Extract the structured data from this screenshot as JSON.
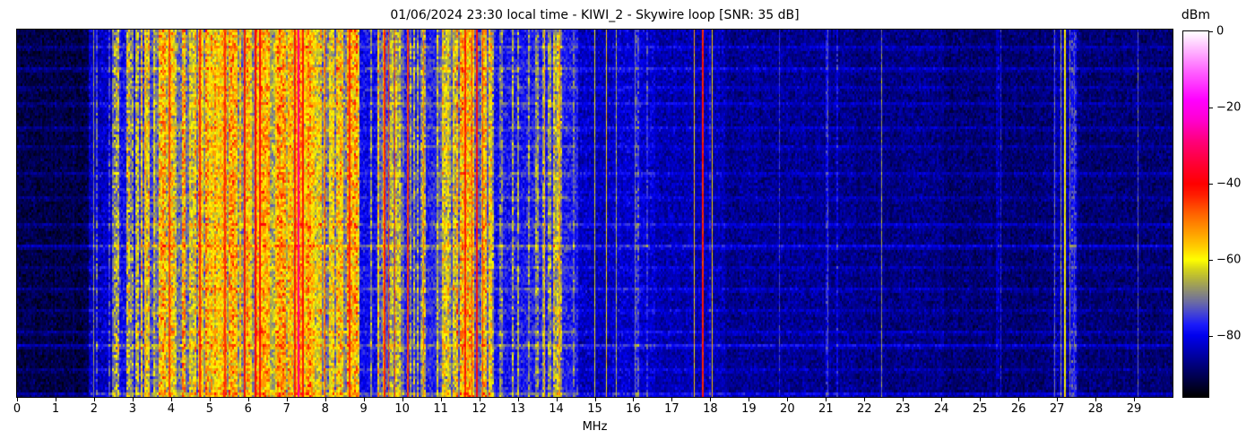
{
  "title": "01/06/2024 23:30 local time - KIWI_2 - Skywire loop [SNR: 35 dB]",
  "station": {
    "datetime": "01/06/2024 23:30 local time",
    "receiver": "KIWI_2",
    "antenna": "Skywire loop",
    "snr_db": 35
  },
  "x_axis": {
    "label": "MHz",
    "ticks": [
      "0",
      "1",
      "2",
      "3",
      "4",
      "5",
      "6",
      "7",
      "8",
      "9",
      "10",
      "11",
      "12",
      "13",
      "14",
      "15",
      "16",
      "17",
      "18",
      "19",
      "20",
      "21",
      "22",
      "23",
      "24",
      "25",
      "26",
      "27",
      "28",
      "29"
    ],
    "tick_values": [
      0,
      1,
      2,
      3,
      4,
      5,
      6,
      7,
      8,
      9,
      10,
      11,
      12,
      13,
      14,
      15,
      16,
      17,
      18,
      19,
      20,
      21,
      22,
      23,
      24,
      25,
      26,
      27,
      28,
      29
    ],
    "range_mhz": [
      0,
      30
    ]
  },
  "colorbar": {
    "label": "dBm",
    "ticks": [
      "0",
      "−20",
      "−40",
      "−60",
      "−80"
    ],
    "tick_values": [
      0,
      -20,
      -40,
      -60,
      -80
    ],
    "range": [
      0,
      -96
    ]
  },
  "chart_data": {
    "type": "heatmap",
    "title": "01/06/2024 23:30 local time - KIWI_2 - Skywire loop [SNR: 35 dB]",
    "xlabel": "MHz",
    "x_range_mhz": [
      0,
      30
    ],
    "value_unit": "dBm",
    "value_range": [
      -96,
      0
    ],
    "legend_position": "right-colorbar",
    "grid": false,
    "colormap": [
      [
        -96,
        "#000000"
      ],
      [
        -92,
        "#00003e"
      ],
      [
        -88,
        "#000078"
      ],
      [
        -84,
        "#0000b4"
      ],
      [
        -80,
        "#0000ee"
      ],
      [
        -77,
        "#1c1cfa"
      ],
      [
        -74,
        "#4646d2"
      ],
      [
        -71,
        "#6e6ea0"
      ],
      [
        -68,
        "#90906e"
      ],
      [
        -65,
        "#b4b43c"
      ],
      [
        -62,
        "#dcdc14"
      ],
      [
        -60,
        "#ffff00"
      ],
      [
        -57,
        "#ffd200"
      ],
      [
        -53,
        "#ffa000"
      ],
      [
        -48,
        "#ff6400"
      ],
      [
        -43,
        "#ff1e00"
      ],
      [
        -40,
        "#ff0000"
      ],
      [
        -35,
        "#ff0032"
      ],
      [
        -29,
        "#ff0078"
      ],
      [
        -23,
        "#ff00d2"
      ],
      [
        -18,
        "#ff00ff"
      ],
      [
        -11,
        "#ff5aff"
      ],
      [
        -5,
        "#ffb4ff"
      ],
      [
        0,
        "#ffffff"
      ]
    ],
    "bands": [
      {
        "from": 0.0,
        "to": 1.85,
        "base": -92,
        "peak": -88,
        "density": 0.08,
        "sigma": 2.2
      },
      {
        "from": 1.85,
        "to": 2.45,
        "base": -84,
        "peak": -66,
        "density": 0.18,
        "sigma": 3.0
      },
      {
        "from": 2.45,
        "to": 3.05,
        "base": -80,
        "peak": -56,
        "density": 0.45,
        "sigma": 3.5
      },
      {
        "from": 3.05,
        "to": 3.55,
        "base": -76,
        "peak": -52,
        "density": 0.55,
        "sigma": 3.5
      },
      {
        "from": 3.55,
        "to": 4.75,
        "base": -72,
        "peak": -47,
        "density": 0.72,
        "sigma": 4.0
      },
      {
        "from": 4.75,
        "to": 6.35,
        "base": -69,
        "peak": -45,
        "density": 0.78,
        "sigma": 4.0
      },
      {
        "from": 6.35,
        "to": 7.65,
        "base": -67,
        "peak": -44,
        "density": 0.8,
        "sigma": 4.0
      },
      {
        "from": 7.65,
        "to": 8.85,
        "base": -71,
        "peak": -47,
        "density": 0.72,
        "sigma": 4.0
      },
      {
        "from": 8.85,
        "to": 9.35,
        "base": -80,
        "peak": -60,
        "density": 0.22,
        "sigma": 3.0
      },
      {
        "from": 9.35,
        "to": 10.05,
        "base": -73,
        "peak": -50,
        "density": 0.62,
        "sigma": 3.8
      },
      {
        "from": 10.05,
        "to": 10.85,
        "base": -78,
        "peak": -56,
        "density": 0.3,
        "sigma": 3.2
      },
      {
        "from": 10.85,
        "to": 11.35,
        "base": -74,
        "peak": -50,
        "density": 0.55,
        "sigma": 3.6
      },
      {
        "from": 11.35,
        "to": 12.25,
        "base": -73,
        "peak": -47,
        "density": 0.6,
        "sigma": 3.8
      },
      {
        "from": 12.25,
        "to": 13.05,
        "base": -79,
        "peak": -58,
        "density": 0.3,
        "sigma": 3.2
      },
      {
        "from": 13.05,
        "to": 14.55,
        "base": -78,
        "peak": -56,
        "density": 0.34,
        "sigma": 3.2
      },
      {
        "from": 14.55,
        "to": 15.45,
        "base": -84,
        "peak": -70,
        "density": 0.1,
        "sigma": 2.8
      },
      {
        "from": 15.45,
        "to": 16.55,
        "base": -83,
        "peak": -68,
        "density": 0.14,
        "sigma": 2.8
      },
      {
        "from": 16.55,
        "to": 18.35,
        "base": -85,
        "peak": -72,
        "density": 0.08,
        "sigma": 2.6
      },
      {
        "from": 18.35,
        "to": 21.55,
        "base": -87,
        "peak": -76,
        "density": 0.06,
        "sigma": 2.5
      },
      {
        "from": 21.55,
        "to": 24.05,
        "base": -88,
        "peak": -78,
        "density": 0.05,
        "sigma": 2.4
      },
      {
        "from": 24.05,
        "to": 26.85,
        "base": -89,
        "peak": -80,
        "density": 0.04,
        "sigma": 2.3
      },
      {
        "from": 26.85,
        "to": 27.55,
        "base": -86,
        "peak": -72,
        "density": 0.3,
        "sigma": 2.8
      },
      {
        "from": 27.55,
        "to": 30.0,
        "base": -89,
        "peak": -80,
        "density": 0.04,
        "sigma": 2.3
      }
    ],
    "carriers": [
      {
        "mhz": 2.0,
        "level": -68,
        "w": 1
      },
      {
        "mhz": 3.33,
        "level": -55,
        "w": 1
      },
      {
        "mhz": 3.95,
        "level": -46,
        "w": 2
      },
      {
        "mhz": 4.75,
        "level": -44,
        "w": 2
      },
      {
        "mhz": 5.4,
        "level": -45,
        "w": 2
      },
      {
        "mhz": 5.9,
        "level": -42,
        "w": 2
      },
      {
        "mhz": 6.18,
        "level": -40,
        "w": 2
      },
      {
        "mhz": 6.3,
        "level": -41,
        "w": 2
      },
      {
        "mhz": 7.21,
        "level": -43,
        "w": 2
      },
      {
        "mhz": 7.3,
        "level": -28,
        "w": 2
      },
      {
        "mhz": 7.42,
        "level": -42,
        "w": 2
      },
      {
        "mhz": 8.0,
        "level": -46,
        "w": 1
      },
      {
        "mhz": 8.63,
        "level": -44,
        "w": 2
      },
      {
        "mhz": 9.55,
        "level": -44,
        "w": 2
      },
      {
        "mhz": 9.65,
        "level": -46,
        "w": 1
      },
      {
        "mhz": 9.8,
        "level": -47,
        "w": 1
      },
      {
        "mhz": 10.15,
        "level": -45,
        "w": 2
      },
      {
        "mhz": 10.55,
        "level": -50,
        "w": 1
      },
      {
        "mhz": 11.63,
        "level": -43,
        "w": 2
      },
      {
        "mhz": 11.8,
        "level": -45,
        "w": 1
      },
      {
        "mhz": 11.95,
        "level": -41,
        "w": 2
      },
      {
        "mhz": 12.08,
        "level": -45,
        "w": 1
      },
      {
        "mhz": 13.7,
        "level": -55,
        "w": 1
      },
      {
        "mhz": 14.1,
        "level": -52,
        "w": 1
      },
      {
        "mhz": 15.0,
        "level": -62,
        "w": 1
      },
      {
        "mhz": 15.3,
        "level": -58,
        "w": 1
      },
      {
        "mhz": 15.55,
        "level": -66,
        "w": 1
      },
      {
        "mhz": 16.05,
        "level": -70,
        "w": 1
      },
      {
        "mhz": 17.58,
        "level": -56,
        "w": 1
      },
      {
        "mhz": 17.8,
        "level": -43,
        "w": 2
      },
      {
        "mhz": 18.05,
        "level": -58,
        "w": 1
      },
      {
        "mhz": 19.8,
        "level": -76,
        "w": 1
      },
      {
        "mhz": 21.05,
        "level": -74,
        "w": 1
      },
      {
        "mhz": 22.45,
        "level": -68,
        "w": 1
      },
      {
        "mhz": 25.55,
        "level": -78,
        "w": 1
      },
      {
        "mhz": 26.95,
        "level": -72,
        "w": 1
      },
      {
        "mhz": 27.1,
        "level": -68,
        "w": 1
      },
      {
        "mhz": 27.2,
        "level": -60,
        "w": 2
      },
      {
        "mhz": 27.33,
        "level": -70,
        "w": 1
      },
      {
        "mhz": 27.45,
        "level": -74,
        "w": 1
      },
      {
        "mhz": 29.1,
        "level": -72,
        "w": 1
      }
    ],
    "time_streaks": [
      {
        "pos": 0.045,
        "boost": 4
      },
      {
        "pos": 0.1,
        "boost": 5
      },
      {
        "pos": 0.155,
        "boost": 3
      },
      {
        "pos": 0.195,
        "boost": 4
      },
      {
        "pos": 0.26,
        "boost": 4
      },
      {
        "pos": 0.315,
        "boost": 3
      },
      {
        "pos": 0.39,
        "boost": 4
      },
      {
        "pos": 0.455,
        "boost": 3
      },
      {
        "pos": 0.525,
        "boost": 5
      },
      {
        "pos": 0.585,
        "boost": 7
      },
      {
        "pos": 0.64,
        "boost": 3
      },
      {
        "pos": 0.7,
        "boost": 4
      },
      {
        "pos": 0.76,
        "boost": 3
      },
      {
        "pos": 0.815,
        "boost": 4
      },
      {
        "pos": 0.855,
        "boost": 7
      },
      {
        "pos": 0.92,
        "boost": 3
      },
      {
        "pos": 0.985,
        "boost": 6
      }
    ]
  }
}
